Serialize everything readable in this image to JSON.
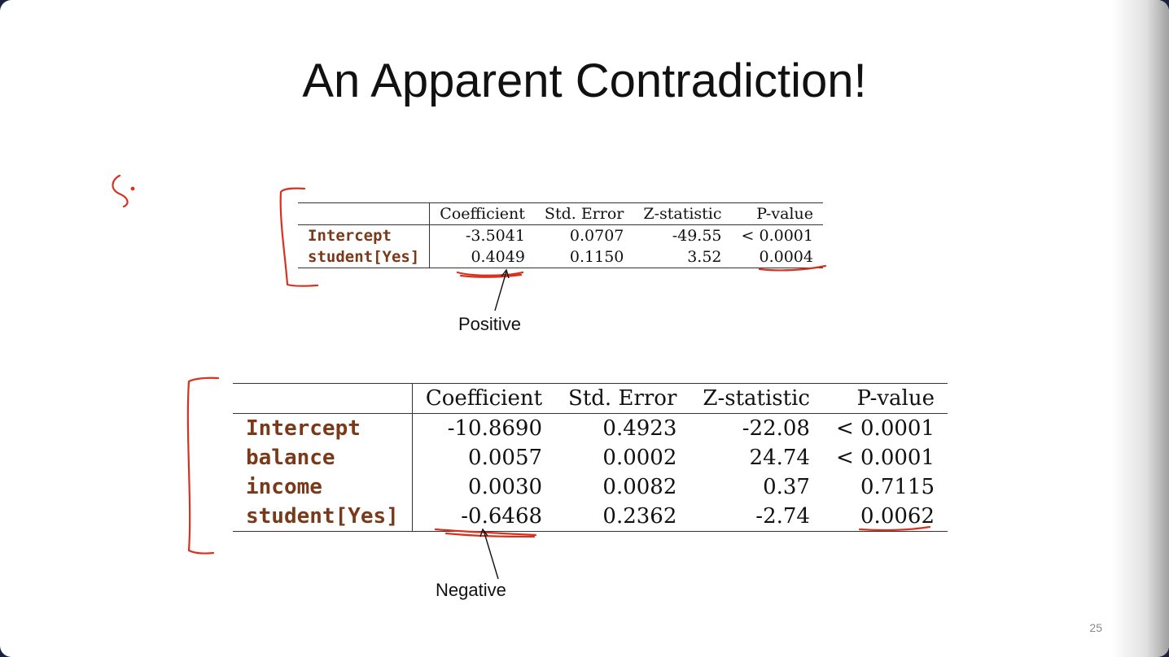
{
  "slide": {
    "title": "An Apparent Contradiction!",
    "page_number": "25",
    "ink_color": "#d8321e"
  },
  "table_small": {
    "headers": [
      "",
      "Coefficient",
      "Std. Error",
      "Z-statistic",
      "P-value"
    ],
    "rows": [
      {
        "var": "Intercept",
        "coef": "-3.5041",
        "se": "0.0707",
        "z": "-49.55",
        "p": "< 0.0001"
      },
      {
        "var": "student[Yes]",
        "coef": "0.4049",
        "se": "0.1150",
        "z": "3.52",
        "p": "0.0004"
      }
    ]
  },
  "table_large": {
    "headers": [
      "",
      "Coefficient",
      "Std. Error",
      "Z-statistic",
      "P-value"
    ],
    "rows": [
      {
        "var": "Intercept",
        "coef": "-10.8690",
        "se": "0.4923",
        "z": "-22.08",
        "p": "< 0.0001"
      },
      {
        "var": "balance",
        "coef": "0.0057",
        "se": "0.0002",
        "z": "24.74",
        "p": "< 0.0001"
      },
      {
        "var": "income",
        "coef": "0.0030",
        "se": "0.0082",
        "z": "0.37",
        "p": "0.7115"
      },
      {
        "var": "student[Yes]",
        "coef": "-0.6468",
        "se": "0.2362",
        "z": "-2.74",
        "p": "0.0062"
      }
    ]
  },
  "annotations": {
    "positive_label": "Positive",
    "negative_label": "Negative"
  }
}
